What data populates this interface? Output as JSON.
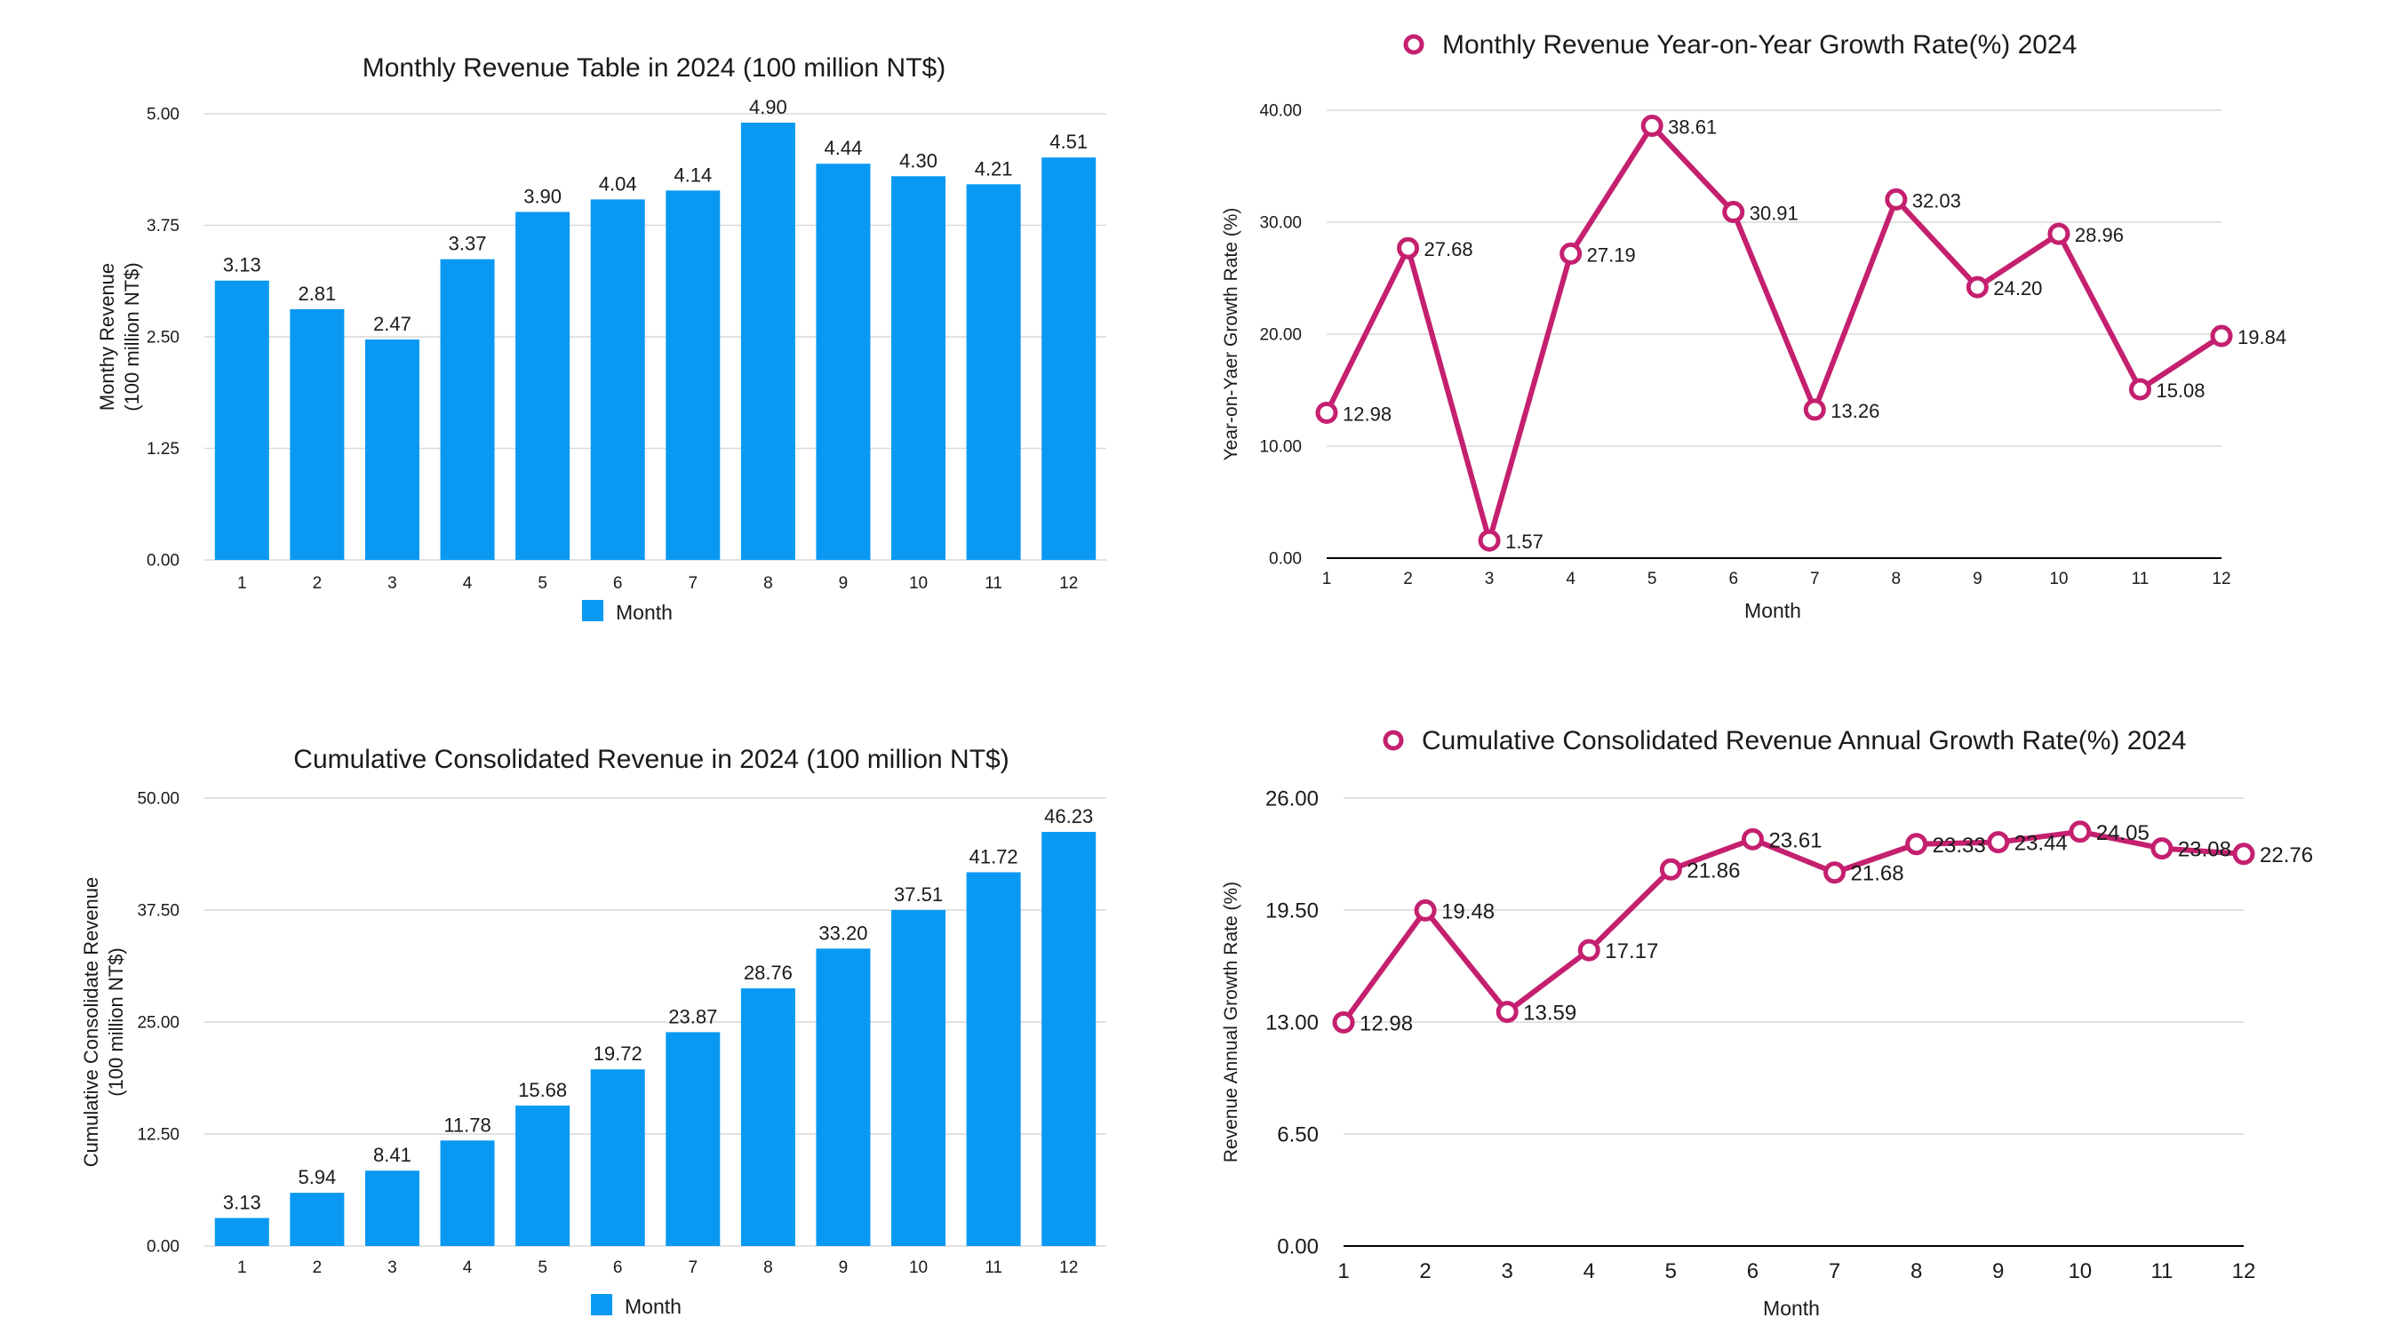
{
  "chart_data": [
    {
      "id": "monthly-revenue",
      "type": "bar",
      "title": "Monthly Revenue Table in 2024 (100 million NT$)",
      "ylabel": [
        "Monthy Revenue",
        "(100 million NT$)"
      ],
      "xlabel": "",
      "legend": "Month",
      "categories": [
        "1",
        "2",
        "3",
        "4",
        "5",
        "6",
        "7",
        "8",
        "9",
        "10",
        "11",
        "12"
      ],
      "values": [
        3.13,
        2.81,
        2.47,
        3.37,
        3.9,
        4.04,
        4.14,
        4.9,
        4.44,
        4.3,
        4.21,
        4.51
      ],
      "yticks": [
        "0.00",
        "1.25",
        "2.50",
        "3.75",
        "5.00"
      ],
      "ylim": [
        0,
        5
      ],
      "grid": true,
      "color": "#0a99f2"
    },
    {
      "id": "monthly-growth",
      "type": "line",
      "title": "Monthly Revenue Year-on-Year Growth Rate(%) 2024",
      "ylabel": [
        "Year-on-Yaer Growth Rate (%)"
      ],
      "xlabel": "Month",
      "categories": [
        "1",
        "2",
        "3",
        "4",
        "5",
        "6",
        "7",
        "8",
        "9",
        "10",
        "11",
        "12"
      ],
      "values": [
        12.98,
        27.68,
        1.57,
        27.19,
        38.61,
        30.91,
        13.26,
        32.03,
        24.2,
        28.96,
        15.08,
        19.84
      ],
      "yticks": [
        "0.00",
        "10.00",
        "20.00",
        "30.00",
        "40.00"
      ],
      "ylim": [
        0,
        40
      ],
      "grid": true,
      "color": "#c4206f"
    },
    {
      "id": "cumulative-revenue",
      "type": "bar",
      "title": "Cumulative Consolidated Revenue in 2024 (100 million NT$)",
      "ylabel": [
        "Cumulative Consolidate Revenue",
        "(100 million NT$)"
      ],
      "xlabel": "",
      "legend": "Month",
      "categories": [
        "1",
        "2",
        "3",
        "4",
        "5",
        "6",
        "7",
        "8",
        "9",
        "10",
        "11",
        "12"
      ],
      "values": [
        3.13,
        5.94,
        8.41,
        11.78,
        15.68,
        19.72,
        23.87,
        28.76,
        33.2,
        37.51,
        41.72,
        46.23
      ],
      "yticks": [
        "0.00",
        "12.50",
        "25.00",
        "37.50",
        "50.00"
      ],
      "ylim": [
        0,
        50
      ],
      "grid": true,
      "color": "#0a99f2"
    },
    {
      "id": "cumulative-growth",
      "type": "line",
      "title": "Cumulative Consolidated Revenue Annual Growth Rate(%) 2024",
      "ylabel": [
        "Revenue Annual Growth Rate (%)"
      ],
      "xlabel": "Month",
      "categories": [
        "1",
        "2",
        "3",
        "4",
        "5",
        "6",
        "7",
        "8",
        "9",
        "10",
        "11",
        "12"
      ],
      "values": [
        12.98,
        19.48,
        13.59,
        17.17,
        21.86,
        23.61,
        21.68,
        23.33,
        23.44,
        24.05,
        23.08,
        22.76
      ],
      "yticks": [
        "0.00",
        "6.50",
        "13.00",
        "19.50",
        "26.00"
      ],
      "ylim": [
        0,
        26
      ],
      "grid": true,
      "color": "#c4206f"
    }
  ]
}
